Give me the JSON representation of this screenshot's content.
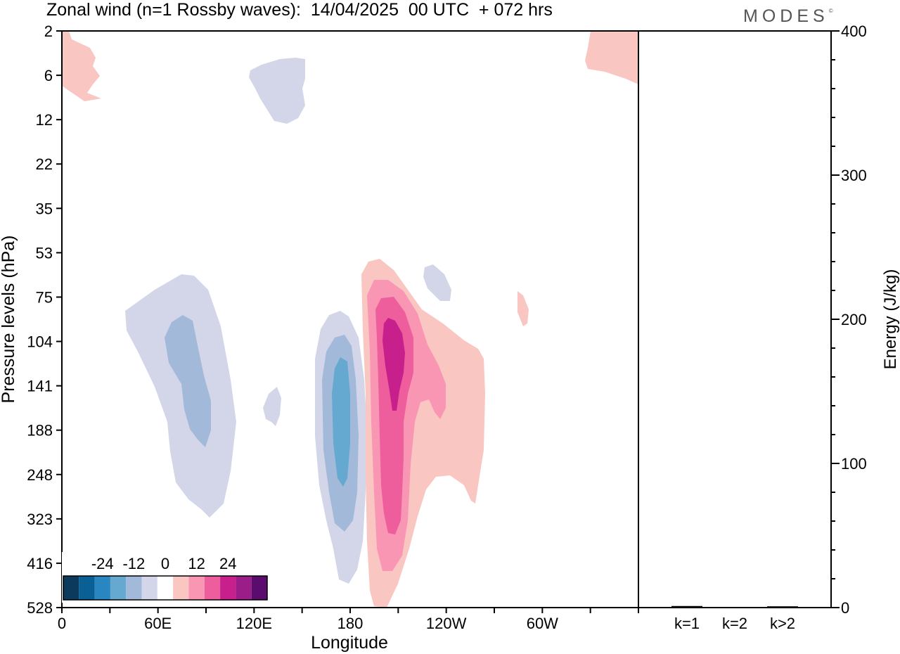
{
  "title": "Zonal wind (n=1 Rossby waves):  14/04/2025  00 UTC  + 072 hrs",
  "logo": "MODES",
  "logo_mark": "©",
  "chart_data": [
    {
      "type": "heatmap",
      "subtype": "filled-contour",
      "xlabel": "Longitude",
      "ylabel": "Pressure levels (hPa)",
      "x_tick_labels": [
        "0",
        "60E",
        "120E",
        "180",
        "120W",
        "60W"
      ],
      "x_ticks_deg": [
        0,
        60,
        120,
        180,
        240,
        300
      ],
      "xlim_deg": [
        0,
        360
      ],
      "y_tick_labels": [
        "2",
        "6",
        "12",
        "22",
        "35",
        "53",
        "75",
        "104",
        "141",
        "188",
        "248",
        "323",
        "416",
        "528"
      ],
      "y_axis": "pressure levels, increasing downward",
      "colorbar": {
        "tick_labels": [
          "-24",
          "-12",
          "0",
          "12",
          "24"
        ],
        "levels": [
          -30,
          -27,
          -24,
          -21,
          -18,
          -15,
          -12,
          -9,
          -6,
          -3,
          3,
          6,
          9,
          12,
          15,
          18,
          21,
          24,
          27,
          30
        ],
        "colors": [
          "#0b3a5c",
          "#0a5f94",
          "#2a86c0",
          "#65a8d0",
          "#a2b9da",
          "#d3d6e8",
          "#ffffff",
          "#f9c6c1",
          "#f996b4",
          "#ee5d9c",
          "#c71f8b",
          "#9b1d87",
          "#5a0d6e"
        ]
      },
      "features": [
        {
          "sign": "negative",
          "max_magnitude": 9,
          "near_lon": 68,
          "near_level": "141"
        },
        {
          "sign": "negative",
          "max_magnitude": 9,
          "near_lon": 175,
          "near_level": "188"
        },
        {
          "sign": "negative",
          "max_magnitude": 3,
          "near_lon": 130,
          "near_level": "6"
        },
        {
          "sign": "negative",
          "max_magnitude": 3,
          "near_lon": 225,
          "near_level": "75"
        },
        {
          "sign": "positive",
          "max_magnitude": 15,
          "near_lon": 198,
          "near_level": "104"
        },
        {
          "sign": "positive",
          "max_magnitude": 3,
          "near_lon": 5,
          "near_level": "6"
        },
        {
          "sign": "positive",
          "max_magnitude": 3,
          "near_lon": 350,
          "near_level": "6"
        },
        {
          "sign": "positive",
          "max_magnitude": 3,
          "near_lon": 287,
          "near_level": "75"
        }
      ]
    },
    {
      "type": "bar",
      "ylabel": "Energy (J/kg)",
      "categories": [
        "k=1",
        "k=2",
        "k>2"
      ],
      "values": [
        0.6,
        0,
        0.4
      ],
      "ylim": [
        0,
        400
      ],
      "y_tick_labels": [
        "0",
        "100",
        "200",
        "300",
        "400"
      ]
    }
  ]
}
